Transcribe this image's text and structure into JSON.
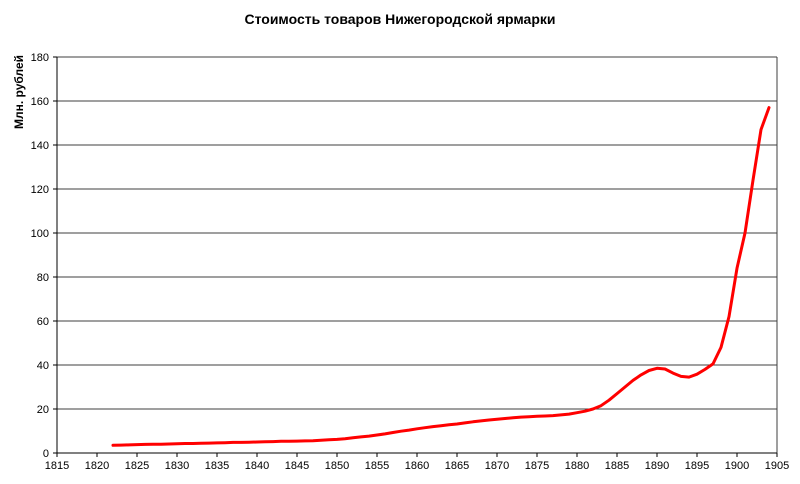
{
  "page": {
    "background": "#ffffff"
  },
  "colors": {
    "axis": "#000000",
    "grid": "#3f3f3f",
    "text": "#000000",
    "series_line": "#ff0000",
    "background": "#ffffff"
  },
  "chart_data": {
    "type": "line",
    "title": "Стоимость товаров Нижегородской ярмарки",
    "xlabel": "",
    "ylabel": "Млн. рублей",
    "xlim": [
      1815,
      1905
    ],
    "ylim": [
      0,
      180
    ],
    "x_ticks": [
      1815,
      1820,
      1825,
      1830,
      1835,
      1840,
      1845,
      1850,
      1855,
      1860,
      1865,
      1870,
      1875,
      1880,
      1885,
      1890,
      1895,
      1900,
      1905
    ],
    "y_ticks": [
      0,
      20,
      40,
      60,
      80,
      100,
      120,
      140,
      160,
      180
    ],
    "grid": "horizontal",
    "legend": "none",
    "series": [
      {
        "name": "Стоимость товаров",
        "color": "#ff0000",
        "x": [
          1822,
          1823,
          1824,
          1825,
          1826,
          1827,
          1828,
          1829,
          1830,
          1831,
          1832,
          1833,
          1834,
          1835,
          1836,
          1837,
          1838,
          1839,
          1840,
          1841,
          1842,
          1843,
          1844,
          1845,
          1846,
          1847,
          1848,
          1849,
          1850,
          1851,
          1852,
          1853,
          1854,
          1855,
          1856,
          1857,
          1858,
          1859,
          1860,
          1861,
          1862,
          1863,
          1864,
          1865,
          1866,
          1867,
          1868,
          1869,
          1870,
          1871,
          1872,
          1873,
          1874,
          1875,
          1876,
          1877,
          1878,
          1879,
          1880,
          1881,
          1882,
          1883,
          1884,
          1885,
          1886,
          1887,
          1888,
          1889,
          1890,
          1891,
          1892,
          1893,
          1894,
          1895,
          1896,
          1897,
          1898,
          1899,
          1900,
          1901,
          1902,
          1903,
          1904
        ],
        "values": [
          3.5,
          3.6,
          3.7,
          3.8,
          3.9,
          4.0,
          4.0,
          4.1,
          4.2,
          4.3,
          4.3,
          4.4,
          4.5,
          4.6,
          4.7,
          4.8,
          4.8,
          4.9,
          5.0,
          5.1,
          5.2,
          5.3,
          5.3,
          5.4,
          5.5,
          5.6,
          5.8,
          6.0,
          6.2,
          6.5,
          6.9,
          7.3,
          7.7,
          8.2,
          8.7,
          9.3,
          9.9,
          10.4,
          11.0,
          11.5,
          12.0,
          12.4,
          12.8,
          13.2,
          13.7,
          14.2,
          14.6,
          15.0,
          15.3,
          15.7,
          16.0,
          16.3,
          16.5,
          16.7,
          16.8,
          17.0,
          17.3,
          17.7,
          18.3,
          19.0,
          20.0,
          21.5,
          24.0,
          27.0,
          30.0,
          33.0,
          35.5,
          37.5,
          38.5,
          38.2,
          36.3,
          34.8,
          34.5,
          35.8,
          38.0,
          40.5,
          48.0,
          62.0,
          84.0,
          100.0,
          124.0,
          147.0,
          157.0
        ]
      }
    ]
  }
}
